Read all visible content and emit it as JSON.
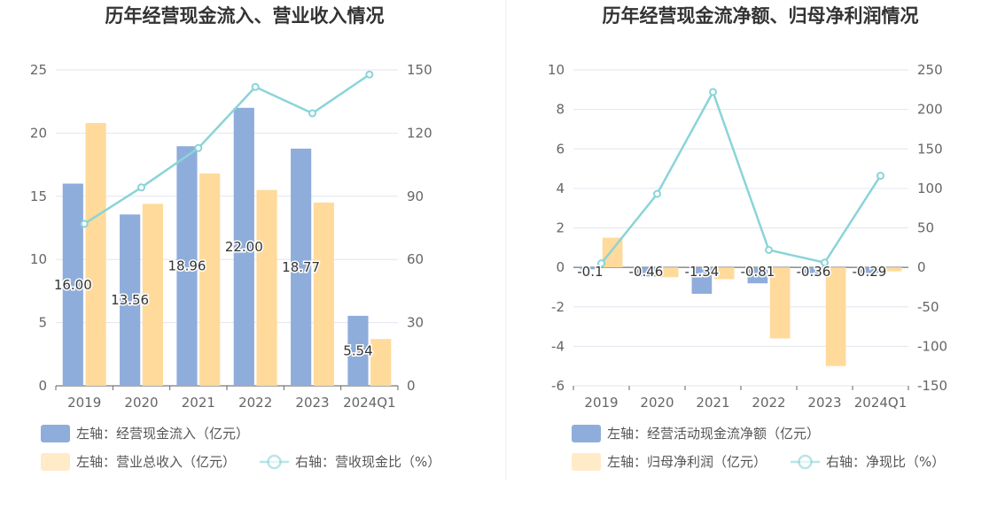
{
  "chart_data": [
    {
      "type": "bar",
      "title": "历年经营现金流入、营业收入情况",
      "categories": [
        "2019",
        "2020",
        "2021",
        "2022",
        "2023",
        "2024Q1"
      ],
      "left_axis": {
        "min": 0,
        "max": 25,
        "ticks": [
          "0",
          "5",
          "10",
          "15",
          "20",
          "25"
        ]
      },
      "right_axis": {
        "min": 0,
        "max": 150,
        "ticks": [
          "0",
          "30",
          "60",
          "90",
          "120",
          "150"
        ]
      },
      "series": [
        {
          "name": "左轴：经营现金流入（亿元）",
          "kind": "bar",
          "axis": "left",
          "color": "#8eaddb",
          "values": [
            16.0,
            13.56,
            18.96,
            22.0,
            18.77,
            5.54
          ],
          "labels": [
            "16.00",
            "13.56",
            "18.96",
            "22.00",
            "18.77",
            "5.54"
          ]
        },
        {
          "name": "左轴：营业总收入（亿元）",
          "kind": "bar",
          "axis": "left",
          "color": "#ffda9b",
          "values": [
            20.8,
            14.4,
            16.8,
            15.5,
            14.5,
            3.7
          ]
        },
        {
          "name": "右轴：营收现金比（%）",
          "kind": "line",
          "axis": "right",
          "color": "#8ad4d8",
          "values": [
            76.9,
            94.2,
            112.9,
            141.9,
            129.4,
            147.8
          ]
        }
      ],
      "grid": true,
      "legend": "bottom"
    },
    {
      "type": "bar",
      "title": "历年经营现金流净额、归母净利润情况",
      "categories": [
        "2019",
        "2020",
        "2021",
        "2022",
        "2023",
        "2024Q1"
      ],
      "left_axis": {
        "min": -6,
        "max": 10,
        "ticks": [
          "-6",
          "-4",
          "-2",
          "0",
          "2",
          "4",
          "6",
          "8",
          "10"
        ]
      },
      "right_axis": {
        "min": -150,
        "max": 250,
        "ticks": [
          "-150",
          "-100",
          "-50",
          "0",
          "50",
          "100",
          "150",
          "200",
          "250"
        ]
      },
      "series": [
        {
          "name": "左轴：经营活动现金流净额（亿元）",
          "kind": "bar",
          "axis": "left",
          "color": "#8eaddb",
          "values": [
            -0.1,
            -0.46,
            -1.34,
            -0.81,
            -0.36,
            -0.29
          ],
          "labels": [
            "-0.1",
            "-0.46",
            "-1.34",
            "-0.81",
            "-0.36",
            "-0.29"
          ]
        },
        {
          "name": "左轴：归母净利润（亿元）",
          "kind": "bar",
          "axis": "left",
          "color": "#ffda9b",
          "values": [
            1.5,
            -0.5,
            -0.6,
            -3.6,
            -5.0,
            -0.2
          ]
        },
        {
          "name": "右轴：净现比（%）",
          "kind": "line",
          "axis": "right",
          "color": "#8ad4d8",
          "values": [
            5,
            93,
            222,
            22,
            6,
            116
          ]
        }
      ],
      "grid": true,
      "legend": "bottom"
    }
  ]
}
